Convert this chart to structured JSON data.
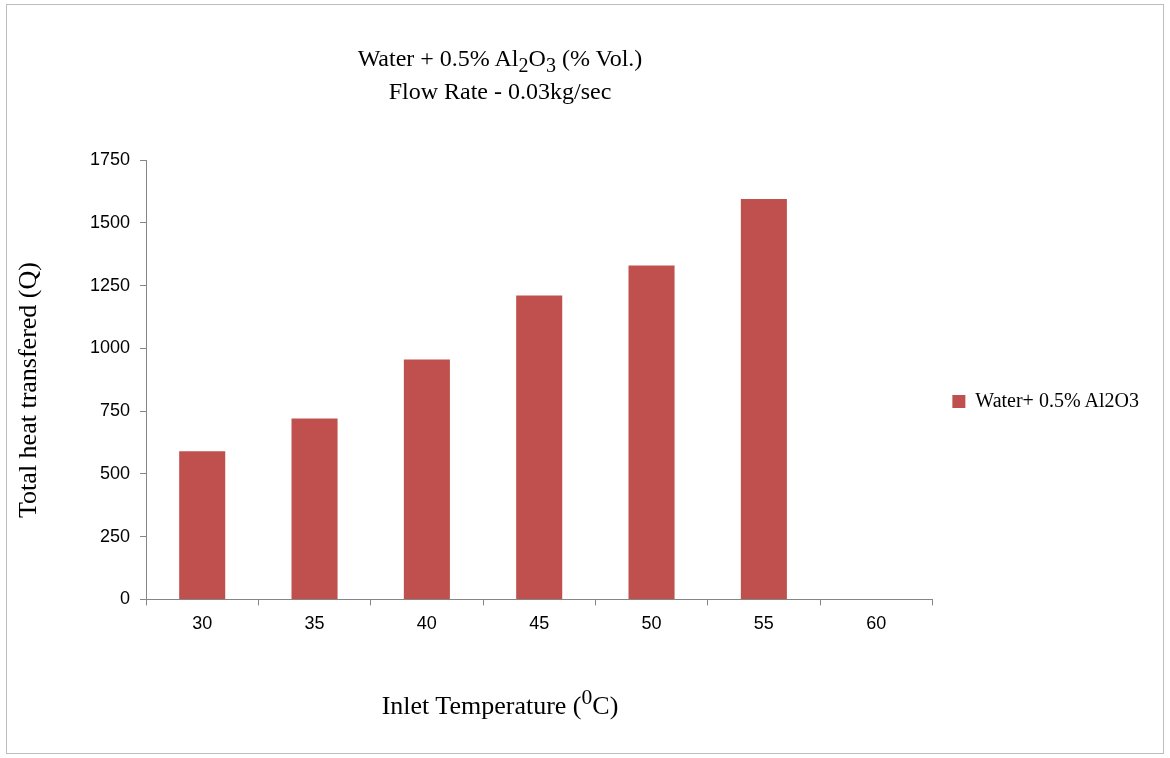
{
  "chart_data": {
    "type": "bar",
    "title": "Water + 0.5% Al$_{2}$O$_{3}$ (% Vol.)",
    "subtitle": "Flow Rate - 0.03kg/sec",
    "xlabel": "Inlet Temperature ($^{0}$C)",
    "ylabel": "Total heat transfered (Q)",
    "categories": [
      "30",
      "35",
      "40",
      "45",
      "50",
      "55",
      "60"
    ],
    "series": [
      {
        "name": "Water+ 0.5% Al2O3",
        "color": "#c0504d",
        "values": [
          590,
          720,
          955,
          1210,
          1330,
          1595,
          null
        ]
      }
    ],
    "ylim": [
      0,
      1750
    ],
    "yticks": [
      0,
      250,
      500,
      750,
      1000,
      1250,
      1500,
      1750
    ],
    "grid": false,
    "legend": "right"
  }
}
